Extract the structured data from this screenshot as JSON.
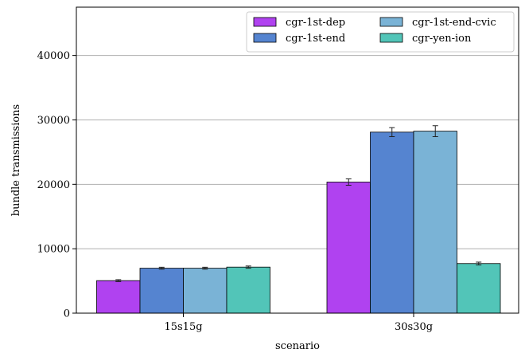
{
  "chart_data": {
    "type": "bar",
    "categories": [
      "15s15g",
      "30s30g"
    ],
    "series": [
      {
        "name": "cgr-1st-dep",
        "values": [
          5050,
          20350
        ],
        "errors": [
          150,
          500
        ],
        "color": "#b042f0"
      },
      {
        "name": "cgr-1st-end",
        "values": [
          6980,
          28100
        ],
        "errors": [
          150,
          700
        ],
        "color": "#5584d0"
      },
      {
        "name": "cgr-1st-end-cvic",
        "values": [
          6980,
          28250
        ],
        "errors": [
          150,
          850
        ],
        "color": "#7ab3d6"
      },
      {
        "name": "cgr-yen-ion",
        "values": [
          7150,
          7700
        ],
        "errors": [
          170,
          220
        ],
        "color": "#52c5b8"
      }
    ],
    "xlabel": "scenario",
    "ylabel": "bundle transmissions",
    "ylim": [
      0,
      47500
    ],
    "yticks": [
      0,
      10000,
      20000,
      30000,
      40000
    ],
    "grid": "horizontal",
    "legend_position": "top-right",
    "legend_columns": 2
  }
}
